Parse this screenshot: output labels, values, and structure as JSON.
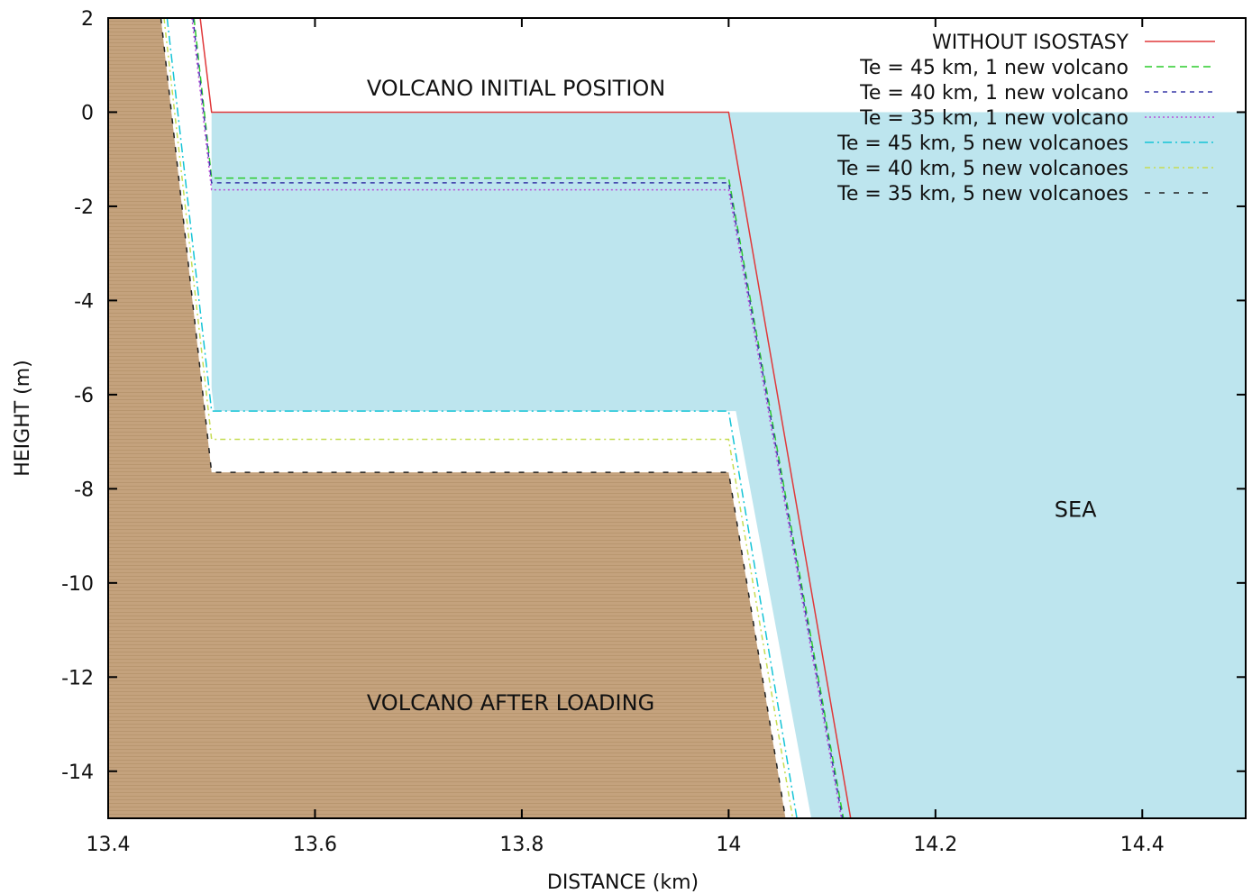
{
  "chart_data": {
    "type": "line",
    "xlabel": "DISTANCE (km)",
    "ylabel": "HEIGHT (m)",
    "xlim": [
      13.4,
      14.5
    ],
    "ylim": [
      -15,
      2
    ],
    "xticks": [
      13.4,
      13.6,
      13.8,
      14,
      14.2,
      14.4
    ],
    "xtick_labels": [
      "13.4",
      "13.6",
      "13.8",
      "14",
      "14.2",
      "14.4"
    ],
    "yticks": [
      2,
      0,
      -2,
      -4,
      -6,
      -8,
      -10,
      -12,
      -14
    ],
    "ytick_labels": [
      "2",
      "0",
      "-2",
      "-4",
      "-6",
      "-8",
      "-10",
      "-12",
      "-14"
    ],
    "grid": false,
    "legend_position": "top-right",
    "regions": {
      "sea": {
        "label": "SEA",
        "color": "#bde5ee",
        "x_from": 13.5,
        "x_to": 14.5,
        "y_from": -15,
        "y_to": 0
      },
      "volcano": {
        "label": "VOLCANO AFTER LOADING",
        "color": "#c4a27d"
      }
    },
    "annotations": [
      {
        "text": "VOLCANO INITIAL POSITION",
        "x": 13.65,
        "y": 0.35
      },
      {
        "text": "SEA",
        "x": 14.315,
        "y": -8.6
      },
      {
        "text": "VOLCANO AFTER LOADING",
        "x": 13.65,
        "y": -12.7
      }
    ],
    "volcano_surface": [
      {
        "x": 13.4,
        "y": 2
      },
      {
        "x": 13.451,
        "y": 2
      },
      {
        "x": 13.5,
        "y": -7.65
      },
      {
        "x": 14.0,
        "y": -7.65
      },
      {
        "x": 14.055,
        "y": -15
      }
    ],
    "series": [
      {
        "name": "WITHOUT ISOSTASY",
        "color": "#e0383a",
        "dash": "solid",
        "points": [
          {
            "x": 13.489,
            "y": 2
          },
          {
            "x": 13.5,
            "y": 0
          },
          {
            "x": 14.0,
            "y": 0
          },
          {
            "x": 14.118,
            "y": -15
          }
        ]
      },
      {
        "name": "Te = 45 km, 1 new volcano",
        "color": "#2ccb2c",
        "dash": "dash",
        "points": [
          {
            "x": 13.483,
            "y": 2
          },
          {
            "x": 13.5,
            "y": -1.4
          },
          {
            "x": 14.0,
            "y": -1.4
          },
          {
            "x": 14.111,
            "y": -15
          }
        ]
      },
      {
        "name": "Te = 40 km, 1 new volcano",
        "color": "#3a3aa8",
        "dash": "dash-small",
        "points": [
          {
            "x": 13.482,
            "y": 2
          },
          {
            "x": 13.5,
            "y": -1.5
          },
          {
            "x": 14.0,
            "y": -1.5
          },
          {
            "x": 14.11,
            "y": -15
          }
        ]
      },
      {
        "name": "Te = 35 km, 1 new volcano",
        "color": "#b84fd8",
        "dash": "dot",
        "points": [
          {
            "x": 13.481,
            "y": 2
          },
          {
            "x": 13.5,
            "y": -1.65
          },
          {
            "x": 14.0,
            "y": -1.65
          },
          {
            "x": 14.109,
            "y": -15
          }
        ]
      },
      {
        "name": "Te = 45 km, 5 new volcanoes",
        "color": "#14c4d6",
        "dash": "dashdot",
        "points": [
          {
            "x": 13.457,
            "y": 2
          },
          {
            "x": 13.5,
            "y": -6.35
          },
          {
            "x": 14.0,
            "y": -6.35
          },
          {
            "x": 14.066,
            "y": -15
          }
        ]
      },
      {
        "name": "Te = 40 km, 5 new volcanoes",
        "color": "#c6dc52",
        "dash": "dashdot-small",
        "points": [
          {
            "x": 13.454,
            "y": 2
          },
          {
            "x": 13.5,
            "y": -6.95
          },
          {
            "x": 14.0,
            "y": -6.95
          },
          {
            "x": 14.062,
            "y": -15
          }
        ]
      },
      {
        "name": "Te = 35 km, 5 new volcanoes",
        "color": "#222222",
        "dash": "wide-dash",
        "points": [
          {
            "x": 13.451,
            "y": 2
          },
          {
            "x": 13.5,
            "y": -7.65
          },
          {
            "x": 14.0,
            "y": -7.65
          },
          {
            "x": 14.055,
            "y": -15
          }
        ]
      }
    ]
  }
}
